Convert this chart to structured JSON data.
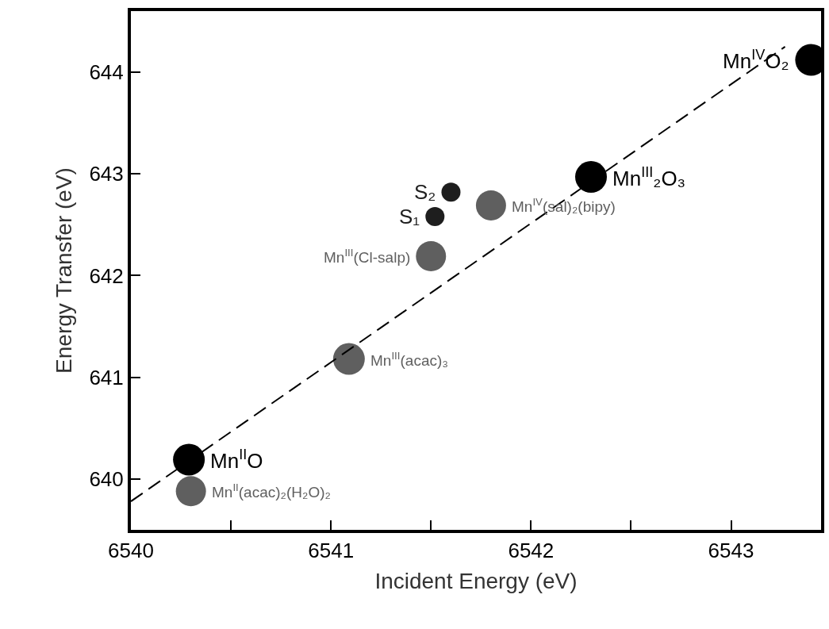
{
  "chart_data": {
    "type": "scatter",
    "xlabel": "Incident Energy (eV)",
    "ylabel": "Energy Transfer (eV)",
    "xlim": [
      6540,
      6543.45
    ],
    "ylim": [
      639.5,
      644.6
    ],
    "xticks": [
      {
        "value": 6540,
        "label": "6540"
      },
      {
        "value": 6540.5,
        "label": null
      },
      6541,
      {
        "value": 6541.5,
        "label": null
      },
      6542,
      {
        "value": 6542.5,
        "label": null
      },
      6543
    ],
    "yticks": [
      640,
      641,
      642,
      643,
      644
    ],
    "series": [
      {
        "name": "Mn$^{II}$O",
        "color": "#000000",
        "x": [
          6540.29
        ],
        "values": [
          640.19
        ]
      },
      {
        "name": "Mn$^{II}$(acac)₂(H₂O)₂",
        "color": "#5f5f5f",
        "x": [
          6540.3
        ],
        "values": [
          639.88
        ]
      },
      {
        "name": "Mn$^{III}$(acac)₃",
        "color": "#5f5f5f",
        "x": [
          6541.09
        ],
        "values": [
          641.18
        ]
      },
      {
        "name": "Mn$^{III}$(Cl-salp)",
        "color": "#5f5f5f",
        "x": [
          6541.5
        ],
        "values": [
          642.19
        ]
      },
      {
        "name": "S₁",
        "color": "#1e1e1e",
        "x": [
          6541.52
        ],
        "values": [
          642.58
        ]
      },
      {
        "name": "S₂",
        "color": "#1e1e1e",
        "x": [
          6541.6
        ],
        "values": [
          642.82
        ]
      },
      {
        "name": "Mn$^{IV}$(sal)₂(bipy)",
        "color": "#5f5f5f",
        "x": [
          6541.8
        ],
        "values": [
          642.69
        ]
      },
      {
        "name": "Mn$^{III}$₂O₃",
        "color": "#000000",
        "x": [
          6542.3
        ],
        "values": [
          642.97
        ]
      },
      {
        "name": "Mn$^{IV}$O₂",
        "color": "#000000",
        "x": [
          6543.4
        ],
        "values": [
          644.12
        ]
      },
      {
        "type": "line",
        "color": "#000000",
        "line_style": "dashed",
        "marker": "none",
        "x": [
          6540.0,
          6543.27
        ],
        "values": [
          639.78,
          644.25
        ]
      }
    ]
  }
}
